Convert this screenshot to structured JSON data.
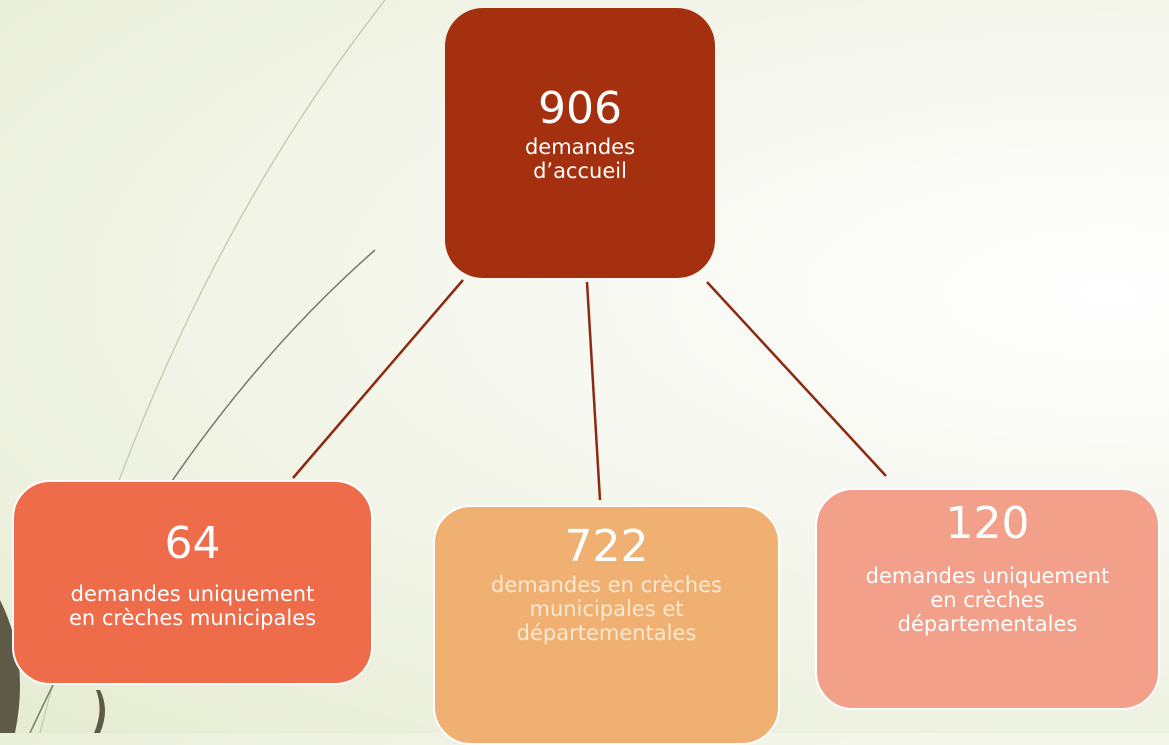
{
  "nodes": [
    {
      "value": "906",
      "label": "demandes d’accueil"
    },
    {
      "value": "64",
      "label": "demandes uniquement en crèches municipales"
    },
    {
      "value": "722",
      "label": "demandes en crèches municipales et départementales"
    },
    {
      "value": "120",
      "label": "demandes uniquement en crèches départementales"
    }
  ]
}
